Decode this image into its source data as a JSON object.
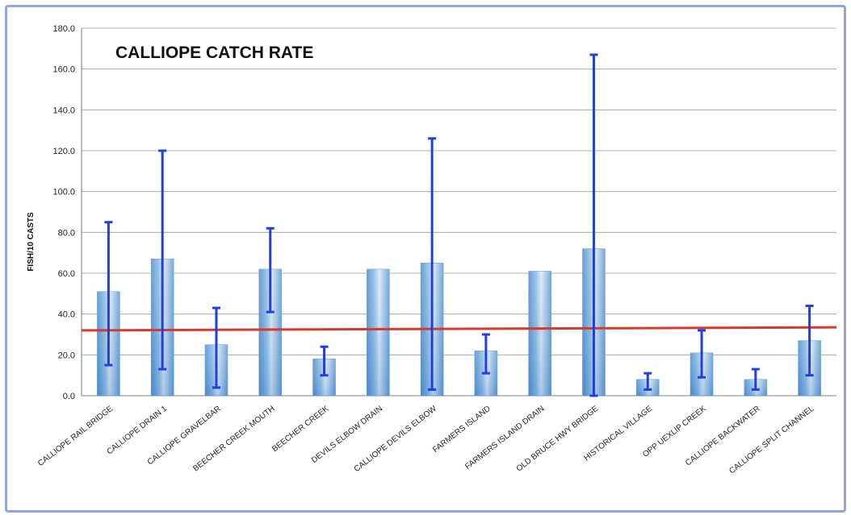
{
  "chart_data": {
    "type": "bar",
    "title": "CALLIOPE CATCH RATE",
    "xlabel": "",
    "ylabel": "FISH/10 CASTS",
    "ylim": [
      0,
      180
    ],
    "yticks": [
      "0.0",
      "20.0",
      "40.0",
      "60.0",
      "80.0",
      "100.0",
      "120.0",
      "140.0",
      "160.0",
      "180.0"
    ],
    "grid": true,
    "categories": [
      "CALLIOPE RAIL BRIDGE",
      "CALLIOPE DRAIN 1",
      "CALLIOPE GRAVELBAR",
      "BEECHER CREEK MOUTH",
      "BEECHER CREEK",
      "DEVILS ELBOW DRAIN",
      "CALLIOPE DEVILS ELBOW",
      "FARMERS ISLAND",
      "FARMERS ISLAND DRAIN",
      "OLD BRUCE HWY BRIDGE",
      "HISTORICAL VILLAGE",
      "OPP UEXLIP CREEK",
      "CALLIOPE BACKWATER",
      "CALLIOPE SPLIT CHANNEL"
    ],
    "values": [
      51,
      67,
      25,
      62,
      18,
      62,
      65,
      22,
      61,
      72,
      8,
      21,
      8,
      27
    ],
    "error_low": [
      15,
      13,
      4,
      41,
      10,
      null,
      3,
      11,
      null,
      0,
      3,
      9,
      3,
      10
    ],
    "error_high": [
      85,
      120,
      43,
      82,
      24,
      null,
      126,
      30,
      null,
      167,
      11,
      32,
      13,
      44
    ],
    "reference_line": {
      "y_start": 32,
      "y_end": 33.5
    },
    "colors": {
      "bar_light": "#dbe9f7",
      "bar_mid": "#8fbde6",
      "bar_dark": "#4f8fce",
      "error": "#1f3fe0",
      "reference": "#d63a2a",
      "grid": "#9a9a9a",
      "frame": "#8ea6e6"
    }
  }
}
